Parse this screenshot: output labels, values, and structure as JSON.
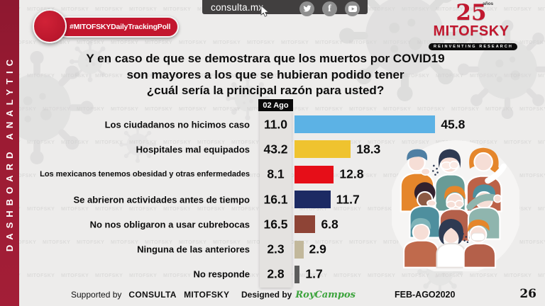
{
  "sidebar": {
    "vertical_text": "DASHBOARD ANALYTIC"
  },
  "badge": {
    "label": "#MITOFSKYDailyTrackingPoll"
  },
  "topbar": {
    "site_label": "consulta.mx",
    "social_icons": [
      "twitter",
      "facebook",
      "youtube"
    ]
  },
  "logo": {
    "anniversary_number": "25",
    "anniversary_word": "años",
    "brand": "MITOFSKY",
    "tagline": "REINVENTING RESEARCH"
  },
  "question": {
    "lines": [
      "Y en caso de que se demostrara que los muertos por COVID19",
      "son mayores a los que se hubieran podido tener",
      "¿cuál sería la principal razón para usted?"
    ]
  },
  "chart_data": {
    "type": "bar",
    "orientation": "horizontal",
    "categories": [
      "Los ciudadanos no hicimos caso",
      "Hospitales mal equipados",
      "Los mexicanos tenemos obesidad y otras enfermedades",
      "Se abrieron actividades antes de tiempo",
      "No nos obligaron a usar cubrebocas",
      "Ninguna de las anteriores",
      "No responde"
    ],
    "column_series": {
      "header": "02 Ago",
      "values": [
        11.0,
        43.2,
        8.1,
        16.1,
        16.5,
        2.3,
        2.8
      ]
    },
    "bar_series": {
      "values": [
        45.8,
        18.3,
        12.8,
        11.7,
        6.8,
        2.9,
        1.7
      ],
      "colors": [
        "#5CB2E5",
        "#EFC32F",
        "#E60E18",
        "#1C2A63",
        "#8E4436",
        "#C2B89B",
        "#5C5C5C"
      ]
    },
    "xlim": [
      0,
      50
    ],
    "value_format": "one_decimal",
    "legend_position": "none",
    "grid": false
  },
  "footer": {
    "supported_by_label": "Supported by",
    "supported_orgs": "CONSULTA   MITOFSKY",
    "designed_by_label": "Designed by",
    "designer_signature": "RoyCampos",
    "period": "FEB-AGO2020",
    "page_number": "26"
  },
  "watermark": {
    "text": "MITOFSKY"
  },
  "colors": {
    "sidebar_red": "#9C1B33",
    "badge_red": "#C3162E",
    "logo_red": "#C2182F",
    "topbar_gray": "#413F3F",
    "background": "#EDECEB"
  }
}
